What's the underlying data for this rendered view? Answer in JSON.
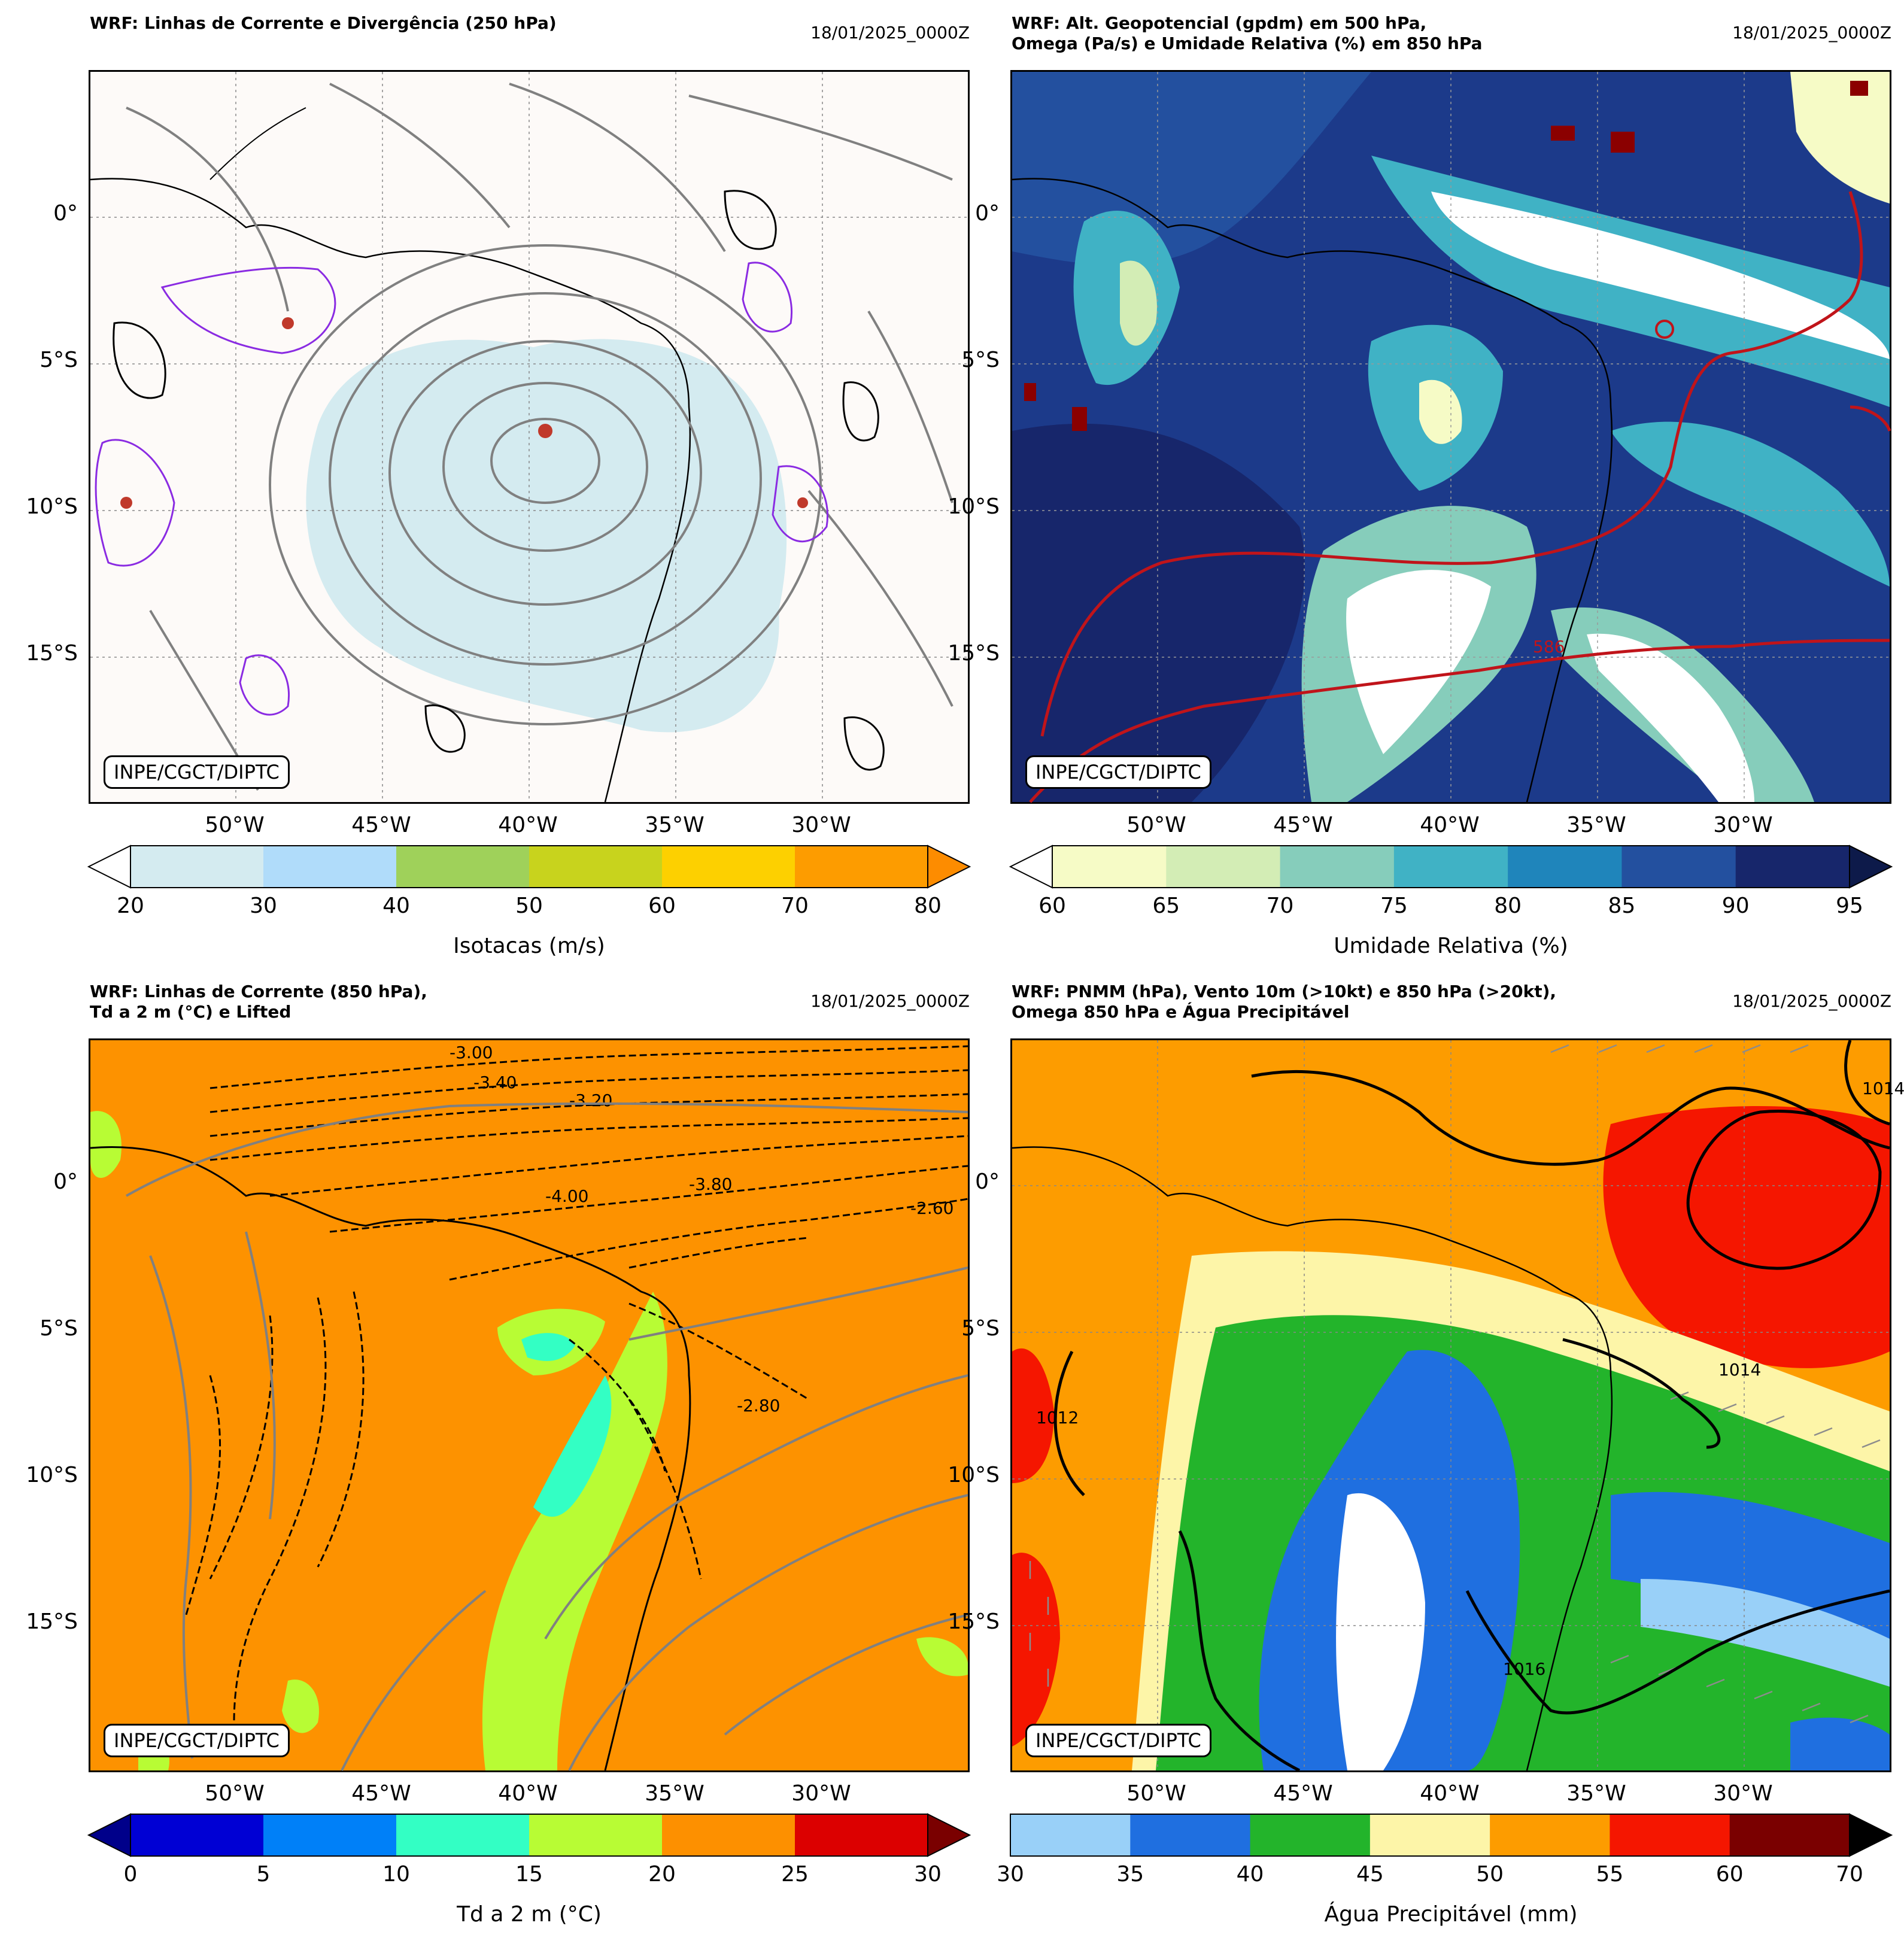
{
  "panels": [
    {
      "id": "p1",
      "title": "WRF: Linhas de Corrente e Divergência (250 hPa)",
      "date": "18/01/2025_0000Z",
      "credit": "INPE/CGCT/DIPTC",
      "lat_labels": [
        "0°",
        "5°S",
        "10°S",
        "15°S"
      ],
      "lon_labels": [
        "50°W",
        "45°W",
        "40°W",
        "35°W",
        "30°W"
      ],
      "colorbar": {
        "label": "Isotacas (m/s)",
        "ticks": [
          "20",
          "30",
          "40",
          "50",
          "60",
          "70",
          "80"
        ],
        "colors": [
          "#d4ebf0",
          "#b0dcfa",
          "#9fd15a",
          "#c8d31d",
          "#fdd000",
          "#fd9c00"
        ],
        "under": "#ffffff",
        "over": "#fd8c00"
      },
      "background": "#fdfaf8"
    },
    {
      "id": "p2",
      "title": "WRF: Alt. Geopotencial (gpdm) em 500 hPa,\nOmega (Pa/s) e Umidade Relativa (%) em 850 hPa",
      "date": "18/01/2025_0000Z",
      "credit": "INPE/CGCT/DIPTC",
      "lat_labels": [
        "0°",
        "5°S",
        "10°S",
        "15°S"
      ],
      "lon_labels": [
        "50°W",
        "45°W",
        "40°W",
        "35°W",
        "30°W"
      ],
      "contour_label": "586",
      "colorbar": {
        "label": "Umidade Relativa (%)",
        "ticks": [
          "60",
          "65",
          "70",
          "75",
          "80",
          "85",
          "90",
          "95"
        ],
        "colors": [
          "#f6fbc6",
          "#d3edb5",
          "#86cdbb",
          "#40b2c5",
          "#1f85bb",
          "#23509f",
          "#17266b"
        ],
        "under": "#ffffff",
        "over": "#0d1a4a"
      },
      "background": "#1c3a8a"
    },
    {
      "id": "p3",
      "title": "WRF: Linhas de Corrente (850 hPa),\nTd a 2 m (°C) e Lifted",
      "date": "18/01/2025_0000Z",
      "credit": "INPE/CGCT/DIPTC",
      "lat_labels": [
        "0°",
        "5°S",
        "10°S",
        "15°S"
      ],
      "lon_labels": [
        "50°W",
        "45°W",
        "40°W",
        "35°W",
        "30°W"
      ],
      "contour_labels": [
        "-3.00",
        "-3.20",
        "-4.00",
        "-2.80",
        "-2.60",
        "-3.80",
        "-3.40"
      ],
      "colorbar": {
        "label": "Td a 2 m (°C)",
        "ticks": [
          "0",
          "5",
          "10",
          "15",
          "20",
          "25",
          "30"
        ],
        "colors": [
          "#0000d4",
          "#0080f8",
          "#33ffc4",
          "#b8fc34",
          "#fd9000",
          "#dc0000"
        ],
        "under": "#00008a",
        "over": "#7a0000"
      },
      "background": "#fd9200"
    },
    {
      "id": "p4",
      "title": "WRF: PNMM (hPa), Vento 10m (>10kt) e 850 hPa (>20kt),\nOmega 850 hPa e Água Precipitável",
      "date": "18/01/2025_0000Z",
      "credit": "INPE/CGCT/DIPTC",
      "lat_labels": [
        "0°",
        "5°S",
        "10°S",
        "15°S"
      ],
      "lon_labels": [
        "50°W",
        "45°W",
        "40°W",
        "35°W",
        "30°W"
      ],
      "contour_labels": [
        "1014",
        "1014",
        "1012",
        "1016"
      ],
      "colorbar": {
        "label": "Água Precipitável (mm)",
        "ticks": [
          "30",
          "35",
          "40",
          "45",
          "50",
          "55",
          "60",
          "70"
        ],
        "colors": [
          "#99d0f8",
          "#1f6fe0",
          "#23b42b",
          "#fdf5a8",
          "#fd9c00",
          "#f51600",
          "#7a0000"
        ],
        "under": null,
        "over": "#000000"
      },
      "background": "#fd9c00"
    }
  ]
}
